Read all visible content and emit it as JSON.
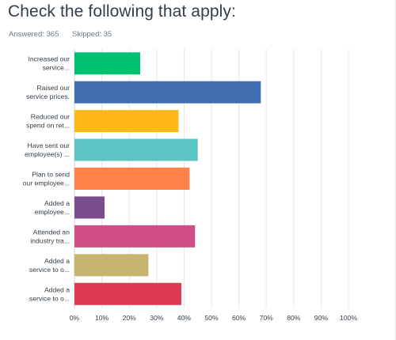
{
  "title": "Check the following that apply:",
  "stats": {
    "answered": "Answered: 365",
    "skipped": "Skipped: 35"
  },
  "colors": {
    "grid": "#e6e6e6",
    "axis": "#d0d0d0"
  },
  "chart_data": {
    "type": "bar",
    "orientation": "horizontal",
    "categories": [
      [
        "Increased our",
        "service..."
      ],
      [
        "Raised our",
        "service prices."
      ],
      [
        "Reduced our",
        "spend on ret..."
      ],
      [
        "Have sent our",
        "employee(s) ..."
      ],
      [
        "Plan to send",
        "our employee..."
      ],
      [
        "Added a",
        "employee..."
      ],
      [
        "Attended an",
        "industry tra..."
      ],
      [
        "Added a",
        "service to o..."
      ],
      [
        "Added a",
        "service to o..."
      ]
    ],
    "values": [
      24,
      68,
      38,
      45,
      42,
      11,
      44,
      27,
      39
    ],
    "bar_colors": [
      "#00bf6f",
      "#406eb0",
      "#ffb818",
      "#5bc4c5",
      "#ff8249",
      "#7a4d8c",
      "#d24f86",
      "#c5b56f",
      "#dc3a54"
    ],
    "xlim": [
      0,
      100
    ],
    "ticks": [
      "0%",
      "10%",
      "20%",
      "30%",
      "40%",
      "50%",
      "60%",
      "70%",
      "80%",
      "90%",
      "100%"
    ],
    "grid": true
  }
}
